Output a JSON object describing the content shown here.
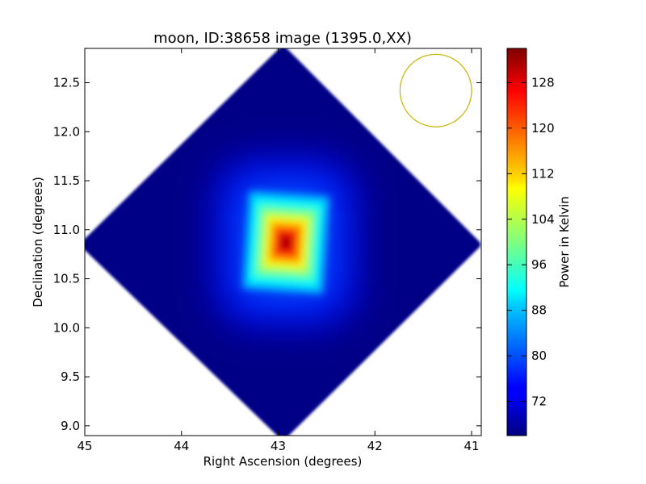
{
  "chart_data": {
    "type": "heatmap",
    "title": "moon, ID:38658 image (1395.0,XX)",
    "xlabel": "Right Ascension (degrees)",
    "ylabel": "Declination (degrees)",
    "xlim": [
      45.0,
      40.9
    ],
    "ylim": [
      8.9,
      12.85
    ],
    "x_ticks": [
      45,
      44,
      43,
      42,
      41
    ],
    "x_tick_labels": [
      "45",
      "44",
      "43",
      "42",
      "41"
    ],
    "y_ticks": [
      9.0,
      9.5,
      10.0,
      10.5,
      11.0,
      11.5,
      12.0,
      12.5
    ],
    "y_tick_labels": [
      "9.0",
      "9.5",
      "10.0",
      "10.5",
      "11.0",
      "11.5",
      "12.0",
      "12.5"
    ],
    "colorbar": {
      "label": "Power in Kelvin",
      "colormap": "jet",
      "range": [
        66.0,
        134.0
      ],
      "ticks": [
        72,
        80,
        88,
        96,
        104,
        112,
        120,
        128
      ],
      "tick_labels": [
        "72",
        "80",
        "88",
        "96",
        "104",
        "112",
        "120",
        "128"
      ]
    },
    "field": {
      "shape": "diamond",
      "center_ra": 42.95,
      "center_dec": 10.87,
      "corners": {
        "left": [
          45.0,
          10.85
        ],
        "right": [
          40.95,
          10.85
        ],
        "top": [
          42.95,
          12.83
        ],
        "bottom": [
          42.95,
          8.9
        ]
      },
      "background_value": 66.5
    },
    "source": {
      "ra": 42.92,
      "dec": 10.87,
      "peak_value": 134.0,
      "core_half_width_deg": [
        0.4,
        0.5
      ],
      "shape": "square"
    },
    "beam": {
      "ra": 41.37,
      "dec": 12.42,
      "radius_deg": 0.37,
      "color": "#c8b400"
    }
  }
}
